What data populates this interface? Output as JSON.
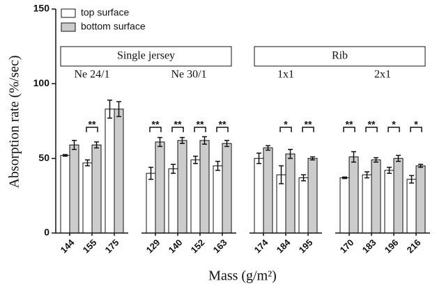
{
  "chart_data": {
    "type": "bar",
    "y_label": "Absorption rate (%/sec)",
    "x_label": "Mass (g/m²)",
    "ylim": [
      0,
      150
    ],
    "yticks": [
      0,
      50,
      100,
      150
    ],
    "groups": [
      {
        "label": "Single jersey",
        "subgroups": [
          {
            "label": "Ne 24/1",
            "categories": [
              "144",
              "155",
              "175"
            ]
          },
          {
            "label": "Ne 30/1",
            "categories": [
              "129",
              "140",
              "152",
              "163"
            ]
          }
        ]
      },
      {
        "label": "Rib",
        "subgroups": [
          {
            "label": "1x1",
            "categories": [
              "174",
              "184",
              "195"
            ]
          },
          {
            "label": "2x1",
            "categories": [
              "170",
              "183",
              "196",
              "216"
            ]
          }
        ]
      }
    ],
    "series": [
      {
        "name": "top surface",
        "color": "#ffffff",
        "values": [
          52,
          47,
          83,
          40,
          43,
          49,
          45,
          50,
          39,
          37,
          37,
          39,
          42,
          36
        ],
        "errors": [
          0.5,
          2,
          6,
          4,
          3,
          2.5,
          3,
          3.5,
          6,
          2,
          0.5,
          2,
          2,
          2.5
        ]
      },
      {
        "name": "bottom surface",
        "color": "#cccccc",
        "values": [
          59,
          59,
          83,
          61,
          62,
          62,
          60,
          57,
          53,
          50,
          51,
          49,
          50,
          45
        ],
        "errors": [
          3,
          2,
          5,
          3,
          2,
          2.5,
          2,
          1.5,
          3,
          1,
          3.5,
          1.5,
          2,
          1
        ]
      }
    ],
    "significance": [
      null,
      "**",
      null,
      "**",
      "**",
      "**",
      "**",
      null,
      "*",
      "**",
      "**",
      "**",
      "*",
      "*"
    ]
  }
}
